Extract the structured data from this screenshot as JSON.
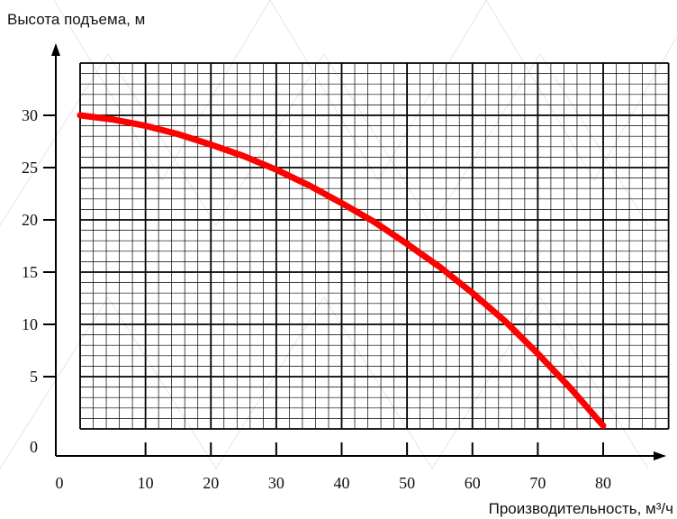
{
  "chart_data": {
    "type": "line",
    "title": "",
    "ylabel": "Высота подъема, м",
    "xlabel": "Производительность, м³/ч",
    "xlim": [
      0,
      90
    ],
    "ylim": [
      0,
      35
    ],
    "xticks": [
      0,
      10,
      20,
      30,
      40,
      50,
      60,
      70,
      80
    ],
    "yticks": [
      0,
      5,
      10,
      15,
      20,
      25,
      30
    ],
    "x_tick_labels": [
      "0",
      "10",
      "20",
      "30",
      "40",
      "50",
      "60",
      "70",
      "80"
    ],
    "y_tick_labels": [
      "0",
      "5",
      "10",
      "15",
      "20",
      "25",
      "30"
    ],
    "grid": true,
    "series": [
      {
        "color": "#ff0000",
        "x": [
          0,
          5,
          10,
          15,
          20,
          25,
          30,
          35,
          40,
          45,
          50,
          55,
          60,
          65,
          70,
          75,
          80
        ],
        "y": [
          30,
          29.6,
          29,
          28.2,
          27.2,
          26.1,
          24.8,
          23.3,
          21.6,
          19.8,
          17.7,
          15.5,
          13,
          10.3,
          7.2,
          3.9,
          0.3
        ]
      }
    ]
  }
}
